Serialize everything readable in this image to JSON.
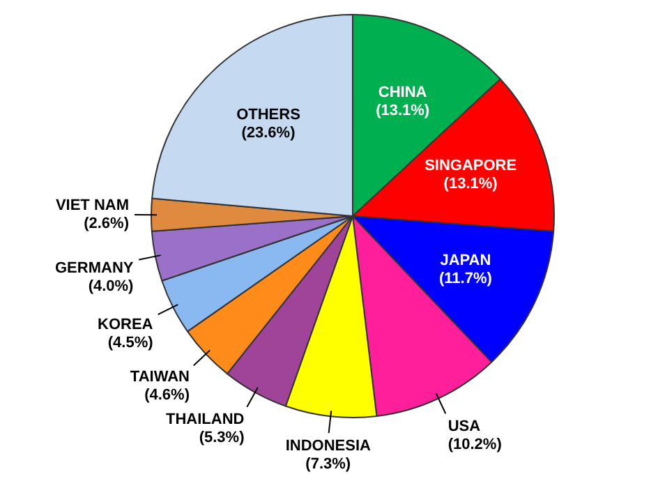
{
  "chart_data": {
    "type": "pie",
    "categories": [
      "CHINA",
      "SINGAPORE",
      "JAPAN",
      "USA",
      "INDONESIA",
      "THAILAND",
      "TAIWAN",
      "KOREA",
      "GERMANY",
      "VIET NAM",
      "OTHERS"
    ],
    "values": [
      13.1,
      13.1,
      11.7,
      10.2,
      7.3,
      5.3,
      4.6,
      4.5,
      4.0,
      2.6,
      23.6
    ],
    "value_labels": [
      "(13.1%)",
      "(13.1%)",
      "(11.7%)",
      "(10.2%)",
      "(7.3%)",
      "(5.3%)",
      "(4.6%)",
      "(4.5%)",
      "(4.0%)",
      "(2.6%)",
      "(23.6%)"
    ],
    "colors": [
      "#00b050",
      "#ff0000",
      "#0000ff",
      "#ff1f9a",
      "#ffff00",
      "#a0449a",
      "#ff8c1a",
      "#8ab8f0",
      "#9a70c8",
      "#e08a40",
      "#c5d9f1"
    ],
    "legend": false
  }
}
